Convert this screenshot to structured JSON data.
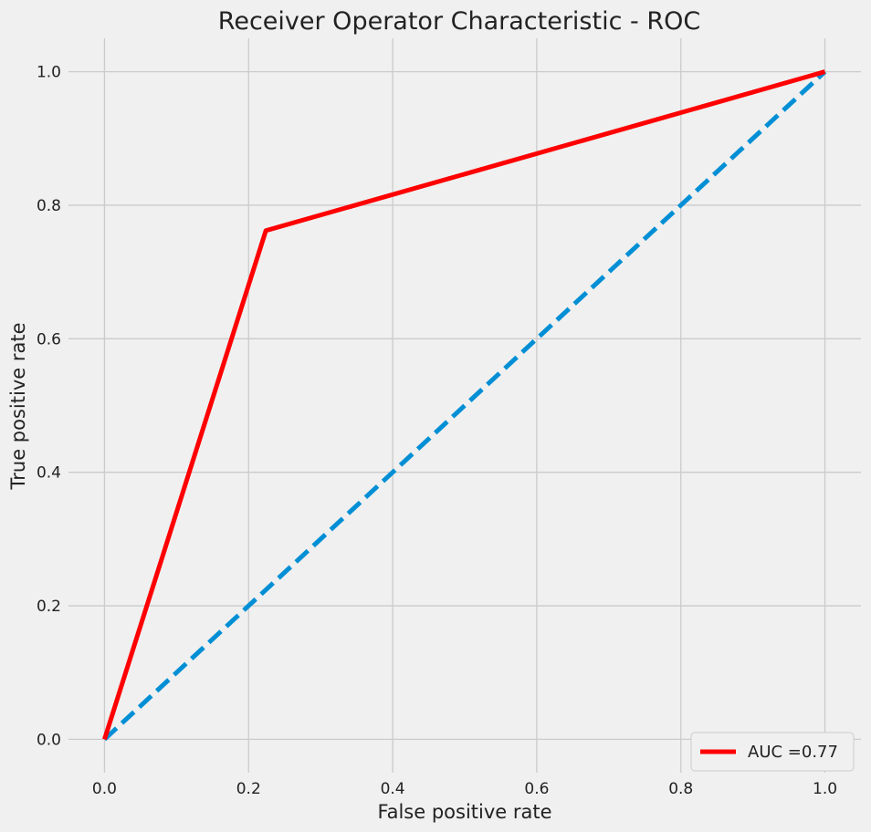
{
  "chart_data": {
    "type": "line",
    "title": "Receiver Operator Characteristic - ROC",
    "xlabel": "False positive rate",
    "ylabel": "True positive rate",
    "xlim": [
      -0.05,
      1.05
    ],
    "ylim": [
      -0.05,
      1.05
    ],
    "xticks": [
      0.0,
      0.2,
      0.4,
      0.6,
      0.8,
      1.0
    ],
    "yticks": [
      0.0,
      0.2,
      0.4,
      0.6,
      0.8,
      1.0
    ],
    "xtick_labels": [
      "0.0",
      "0.2",
      "0.4",
      "0.6",
      "0.8",
      "1.0"
    ],
    "ytick_labels": [
      "0.0",
      "0.2",
      "0.4",
      "0.6",
      "0.8",
      "1.0"
    ],
    "grid": true,
    "legend_position": "lower-right",
    "series": [
      {
        "name": "AUC =0.77",
        "x": [
          0.0,
          0.224,
          1.0
        ],
        "y": [
          0.0,
          0.762,
          1.0
        ],
        "color": "#ff0000",
        "style": "solid"
      },
      {
        "x": [
          0.0,
          1.0
        ],
        "y": [
          0.0,
          1.0
        ],
        "color": "#008fd5",
        "style": "dashed"
      }
    ]
  },
  "colors": {
    "background": "#f0f0f0",
    "grid": "#cbcbcb"
  }
}
